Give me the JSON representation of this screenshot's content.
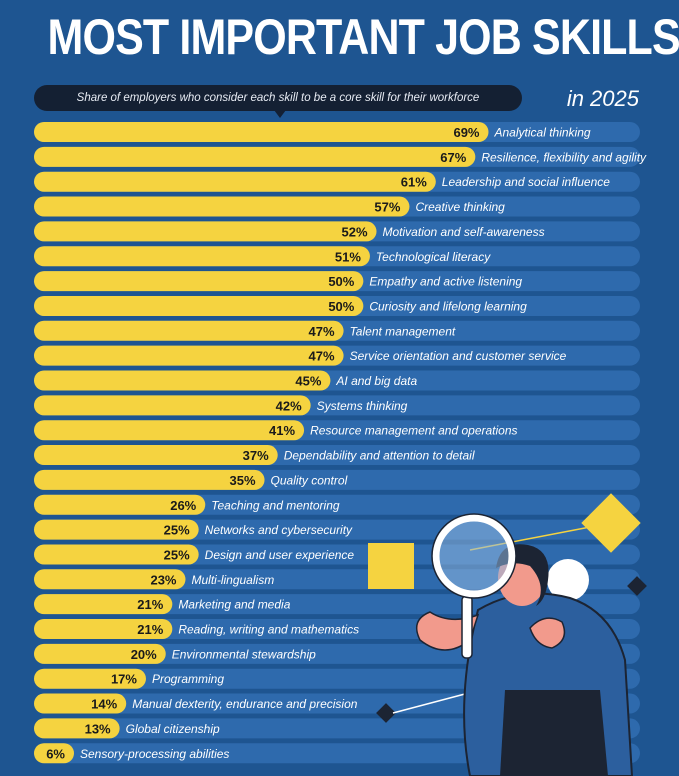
{
  "header": {
    "title": "MOST IMPORTANT JOB SKILLS",
    "subtitle": "Share of employers who consider each skill to be a core skill for their workforce",
    "year": "in 2025"
  },
  "colors": {
    "background": "#1e5591",
    "track": "#2e6aad",
    "bar": "#f5d340",
    "label_text": "#ffffff",
    "value_text": "#1a1a1a",
    "illustration_dark": "#1c2433",
    "illustration_skin": "#f29a8c"
  },
  "chart_data": {
    "type": "bar",
    "orientation": "horizontal",
    "title": "MOST IMPORTANT JOB SKILLS",
    "subtitle": "Share of employers who consider each skill to be a core skill for their workforce",
    "xlim": [
      0,
      100
    ],
    "value_format": "{v}%",
    "categories": [
      "Analytical thinking",
      "Resilience, flexibility and agility",
      "Leadership and social influence",
      "Creative thinking",
      "Motivation and self-awareness",
      "Technological literacy",
      "Empathy and active listening",
      "Curiosity and lifelong learning",
      "Talent management",
      "Service orientation and customer service",
      "AI and big data",
      "Systems thinking",
      "Resource management and operations",
      "Dependability and attention to detail",
      "Quality control",
      "Teaching and mentoring",
      "Networks and cybersecurity",
      "Design and user experience",
      "Multi-lingualism",
      "Marketing and media",
      "Reading, writing and mathematics",
      "Environmental stewardship",
      "Programming",
      "Manual dexterity, endurance and precision",
      "Global citizenship",
      "Sensory-processing abilities"
    ],
    "values": [
      69,
      67,
      61,
      57,
      52,
      51,
      50,
      50,
      47,
      47,
      45,
      42,
      41,
      37,
      35,
      26,
      25,
      25,
      23,
      21,
      21,
      20,
      17,
      14,
      13,
      6
    ]
  }
}
